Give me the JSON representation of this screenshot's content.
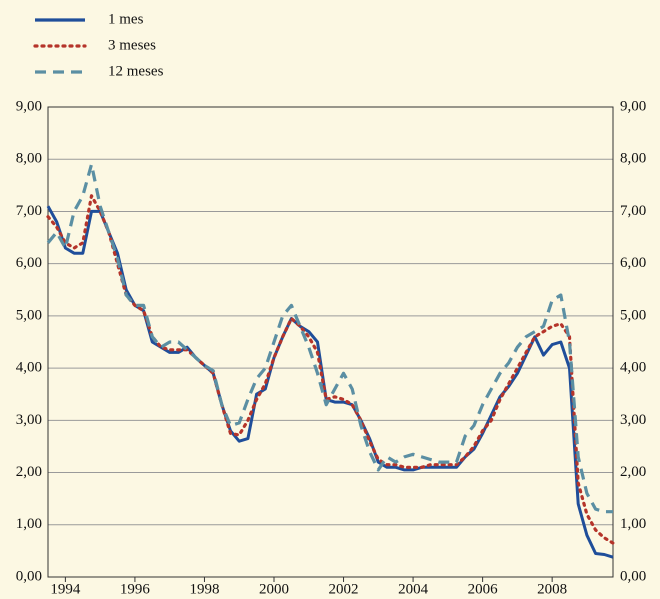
{
  "chart_data": {
    "type": "line",
    "x": [
      1993.5,
      1993.75,
      1994,
      1994.25,
      1994.5,
      1994.75,
      1995,
      1995.25,
      1995.5,
      1995.75,
      1996,
      1996.25,
      1996.5,
      1996.75,
      1997,
      1997.25,
      1997.5,
      1997.75,
      1998,
      1998.25,
      1998.5,
      1998.75,
      1999,
      1999.25,
      1999.5,
      1999.75,
      2000,
      2000.25,
      2000.5,
      2000.75,
      2001,
      2001.25,
      2001.5,
      2001.75,
      2002,
      2002.25,
      2002.5,
      2002.75,
      2003,
      2003.25,
      2003.5,
      2003.75,
      2004,
      2004.25,
      2004.5,
      2004.75,
      2005,
      2005.25,
      2005.5,
      2005.75,
      2006,
      2006.25,
      2006.5,
      2006.75,
      2007,
      2007.25,
      2007.5,
      2007.75,
      2008,
      2008.25,
      2008.5,
      2008.75,
      2009,
      2009.25,
      2009.5,
      2009.75
    ],
    "series": [
      {
        "name": "1 mes",
        "color": "#1f4e9a",
        "dash": "solid",
        "values": [
          7.1,
          6.8,
          6.3,
          6.2,
          6.2,
          7.0,
          7.0,
          6.6,
          6.2,
          5.5,
          5.2,
          5.1,
          4.5,
          4.4,
          4.3,
          4.3,
          4.4,
          4.2,
          4.05,
          3.9,
          3.3,
          2.8,
          2.6,
          2.65,
          3.5,
          3.6,
          4.2,
          4.6,
          4.95,
          4.8,
          4.7,
          4.5,
          3.4,
          3.35,
          3.35,
          3.3,
          3.0,
          2.65,
          2.2,
          2.1,
          2.1,
          2.05,
          2.05,
          2.1,
          2.1,
          2.1,
          2.1,
          2.1,
          2.3,
          2.45,
          2.75,
          3.1,
          3.45,
          3.65,
          3.9,
          4.25,
          4.6,
          4.25,
          4.45,
          4.5,
          4.0,
          1.4,
          0.8,
          0.45,
          0.43,
          0.38
        ]
      },
      {
        "name": "3 meses",
        "color": "#b5342a",
        "dash": "dotted",
        "values": [
          6.9,
          6.7,
          6.4,
          6.3,
          6.4,
          7.3,
          7.0,
          6.6,
          6.0,
          5.4,
          5.2,
          5.1,
          4.6,
          4.4,
          4.35,
          4.35,
          4.35,
          4.2,
          4.05,
          3.9,
          3.3,
          2.75,
          2.72,
          3.0,
          3.4,
          3.7,
          4.2,
          4.6,
          4.95,
          4.8,
          4.6,
          4.3,
          3.4,
          3.45,
          3.4,
          3.3,
          3.0,
          2.6,
          2.25,
          2.15,
          2.15,
          2.1,
          2.1,
          2.1,
          2.15,
          2.15,
          2.15,
          2.15,
          2.3,
          2.5,
          2.8,
          3.0,
          3.4,
          3.7,
          4.0,
          4.3,
          4.6,
          4.7,
          4.8,
          4.85,
          4.6,
          1.8,
          1.2,
          0.9,
          0.75,
          0.65
        ]
      },
      {
        "name": "12 meses",
        "color": "#5b8fa3",
        "dash": "dashed",
        "values": [
          6.4,
          6.6,
          6.3,
          7.0,
          7.3,
          7.9,
          7.1,
          6.6,
          6.1,
          5.4,
          5.2,
          5.2,
          4.6,
          4.4,
          4.5,
          4.5,
          4.35,
          4.2,
          4.05,
          3.95,
          3.3,
          2.9,
          2.95,
          3.4,
          3.8,
          4.0,
          4.5,
          5.0,
          5.2,
          4.8,
          4.4,
          3.9,
          3.3,
          3.6,
          3.9,
          3.6,
          2.9,
          2.4,
          2.05,
          2.3,
          2.2,
          2.3,
          2.35,
          2.3,
          2.25,
          2.2,
          2.2,
          2.2,
          2.7,
          2.9,
          3.3,
          3.6,
          3.9,
          4.1,
          4.4,
          4.6,
          4.7,
          4.8,
          5.3,
          5.4,
          4.5,
          2.3,
          1.6,
          1.3,
          1.25,
          1.25
        ]
      }
    ],
    "xlim": [
      1993.5,
      2009.75
    ],
    "xticks": [
      1994,
      1996,
      1998,
      2000,
      2002,
      2004,
      2006,
      2008
    ],
    "ylim": [
      0,
      9
    ],
    "yticks": [
      {
        "value": 0,
        "label": "0,00"
      },
      {
        "value": 1,
        "label": "1,00"
      },
      {
        "value": 2,
        "label": "2,00"
      },
      {
        "value": 3,
        "label": "3,00"
      },
      {
        "value": 4,
        "label": "4,00"
      },
      {
        "value": 5,
        "label": "5,00"
      },
      {
        "value": 6,
        "label": "6,00"
      },
      {
        "value": 7,
        "label": "7,00"
      },
      {
        "value": 8,
        "label": "8,00"
      },
      {
        "value": 9,
        "label": "9,00"
      }
    ],
    "grid": true,
    "legend": "top-left"
  }
}
